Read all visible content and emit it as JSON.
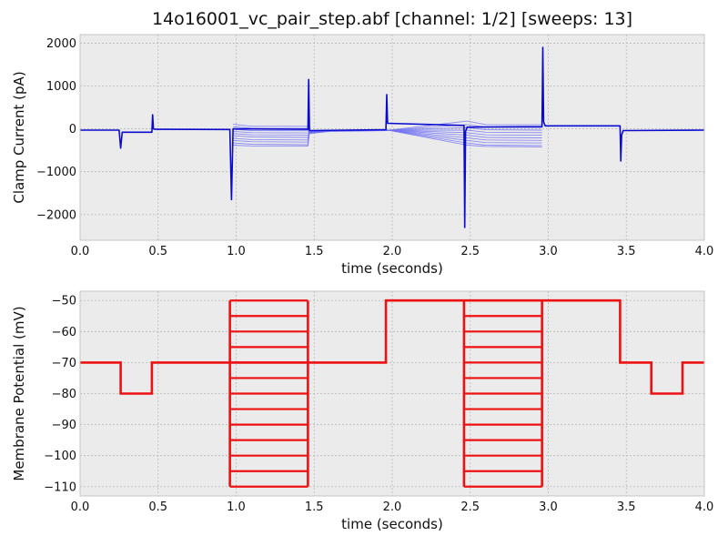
{
  "title": "14o16001_vc_pair_step.abf [channel: 1/2] [sweeps: 13]",
  "colors": {
    "panel_bg": "#ebebeb",
    "grid": "#b8b8b8",
    "current_faint": "#6f6ff5",
    "current_dark": "#0b0bd0",
    "voltage": "#ee1111"
  },
  "chart_data": [
    {
      "type": "line",
      "title": "14o16001_vc_pair_step.abf [channel: 1/2] [sweeps: 13]",
      "xlabel": "time (seconds)",
      "ylabel": "Clamp Current (pA)",
      "xlim": [
        0.0,
        4.0
      ],
      "ylim": [
        -2600,
        2200
      ],
      "xticks": [
        "0.0",
        "0.5",
        "1.0",
        "1.5",
        "2.0",
        "2.5",
        "3.0",
        "3.5",
        "4.0"
      ],
      "yticks": [
        "−2000",
        "−1000",
        "0",
        "1000",
        "2000"
      ],
      "ytick_values": [
        -2000,
        -1000,
        0,
        1000,
        2000
      ],
      "grid": true,
      "sweeps": 13,
      "series": [
        {
          "style": "thick",
          "x": [
            0.0,
            0.25,
            0.26,
            0.27,
            0.46,
            0.465,
            0.47,
            0.48,
            0.96,
            0.97,
            0.98,
            1.46,
            1.465,
            1.47,
            1.96,
            1.965,
            1.97,
            2.46,
            2.465,
            2.47,
            2.48,
            2.96,
            2.965,
            2.97,
            2.98,
            3.46,
            3.465,
            3.47,
            3.48,
            4.0
          ],
          "y": [
            -30,
            -30,
            -450,
            -80,
            -80,
            330,
            0,
            -10,
            -15,
            -1650,
            0,
            -10,
            1150,
            -40,
            -20,
            800,
            130,
            80,
            -2300,
            -60,
            40,
            50,
            1900,
            160,
            70,
            70,
            -750,
            -150,
            -40,
            -30
          ]
        },
        {
          "style": "sweep",
          "x": [
            0.98,
            1.1,
            1.46,
            1.47,
            1.6,
            1.96,
            2.48,
            2.6,
            2.96
          ],
          "y": [
            110,
            60,
            60,
            -110,
            -60,
            -40,
            180,
            100,
            95
          ]
        },
        {
          "style": "sweep",
          "x": [
            0.98,
            1.1,
            1.46,
            1.47,
            1.6,
            1.96,
            2.48,
            2.6,
            2.96
          ],
          "y": [
            50,
            15,
            10,
            -100,
            -55,
            -38,
            100,
            40,
            30
          ]
        },
        {
          "style": "sweep",
          "x": [
            0.98,
            1.1,
            1.46,
            1.47,
            1.6,
            1.96,
            2.48,
            2.6,
            2.96
          ],
          "y": [
            -10,
            -40,
            -45,
            -95,
            -52,
            -36,
            30,
            -20,
            -30
          ]
        },
        {
          "style": "sweep",
          "x": [
            0.98,
            1.1,
            1.46,
            1.47,
            1.6,
            1.96,
            2.48,
            2.6,
            2.96
          ],
          "y": [
            -60,
            -90,
            -95,
            -90,
            -50,
            -34,
            -30,
            -80,
            -90
          ]
        },
        {
          "style": "sweep",
          "x": [
            0.98,
            1.1,
            1.46,
            1.47,
            1.6,
            1.96,
            2.48,
            2.6,
            2.96
          ],
          "y": [
            -110,
            -140,
            -145,
            -85,
            -48,
            -32,
            -90,
            -140,
            -150
          ]
        },
        {
          "style": "sweep",
          "x": [
            0.98,
            1.1,
            1.46,
            1.47,
            1.6,
            1.96,
            2.48,
            2.6,
            2.96
          ],
          "y": [
            -160,
            -190,
            -200,
            -80,
            -46,
            -30,
            -150,
            -200,
            -210
          ]
        },
        {
          "style": "sweep",
          "x": [
            0.98,
            1.1,
            1.46,
            1.47,
            1.6,
            1.96,
            2.48,
            2.6,
            2.96
          ],
          "y": [
            -220,
            -250,
            -260,
            -75,
            -44,
            -28,
            -210,
            -260,
            -270
          ]
        },
        {
          "style": "sweep",
          "x": [
            0.98,
            1.1,
            1.46,
            1.47,
            1.6,
            1.96,
            2.48,
            2.6,
            2.96
          ],
          "y": [
            -270,
            -300,
            -310,
            -70,
            -42,
            -26,
            -270,
            -320,
            -330
          ]
        },
        {
          "style": "sweep",
          "x": [
            0.98,
            1.1,
            1.46,
            1.47,
            1.6,
            1.96,
            2.48,
            2.6,
            2.96
          ],
          "y": [
            -330,
            -360,
            -370,
            -65,
            -40,
            -24,
            -330,
            -380,
            -390
          ]
        },
        {
          "style": "sweep",
          "x": [
            0.98,
            1.1,
            1.46,
            1.47,
            1.6,
            1.96,
            2.48,
            2.6,
            2.96
          ],
          "y": [
            -380,
            -400,
            -400,
            -60,
            -38,
            -22,
            -380,
            -410,
            -420
          ]
        }
      ]
    },
    {
      "type": "line",
      "xlabel": "time (seconds)",
      "ylabel": "Membrane Potential (mV)",
      "xlim": [
        0.0,
        4.0
      ],
      "ylim": [
        -113,
        -47
      ],
      "xticks": [
        "0.0",
        "0.5",
        "1.0",
        "1.5",
        "2.0",
        "2.5",
        "3.0",
        "3.5",
        "4.0"
      ],
      "yticks": [
        "−50",
        "−60",
        "−70",
        "−80",
        "−90",
        "−100",
        "−110"
      ],
      "ytick_values": [
        -50,
        -60,
        -70,
        -80,
        -90,
        -100,
        -110
      ],
      "grid": true,
      "outline": {
        "x": [
          0.0,
          0.26,
          0.26,
          0.46,
          0.46,
          0.96,
          1.46,
          1.46,
          1.96,
          1.96,
          3.46,
          3.46,
          3.66,
          3.66,
          3.86,
          3.86,
          4.0
        ],
        "y": [
          -70,
          -70,
          -80,
          -80,
          -70,
          -70,
          -70,
          -70,
          -70,
          -50,
          -50,
          -70,
          -70,
          -80,
          -80,
          -70,
          -70
        ]
      },
      "step_blocks": [
        {
          "x_start": 0.96,
          "x_end": 1.46,
          "levels": [
            -50,
            -55,
            -60,
            -65,
            -70,
            -75,
            -80,
            -85,
            -90,
            -95,
            -100,
            -105,
            -110
          ]
        },
        {
          "x_start": 2.46,
          "x_end": 2.96,
          "levels": [
            -50,
            -55,
            -60,
            -65,
            -70,
            -75,
            -80,
            -85,
            -90,
            -95,
            -100,
            -105,
            -110
          ]
        }
      ]
    }
  ]
}
